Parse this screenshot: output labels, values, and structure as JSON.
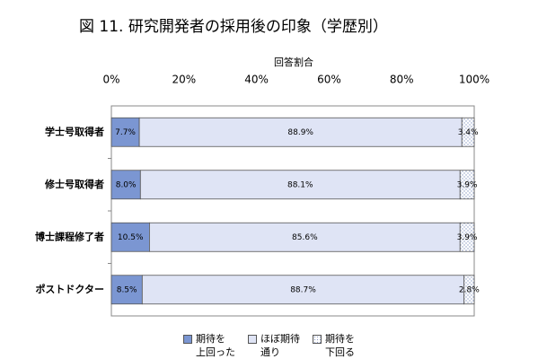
{
  "chart_data": {
    "type": "stacked-barh",
    "title": "図 11.  研究開発者の採用後の印象（学歴別）",
    "x_label": "回答割合",
    "categories": [
      "学士号取得者",
      "修士号取得者",
      "博士課程修了者",
      "ポストドクター"
    ],
    "series": [
      {
        "name": "期待を\n上回った",
        "color": "#7b96d2",
        "values": [
          7.7,
          8.0,
          10.5,
          8.5
        ],
        "value_labels": [
          "7.7%",
          "8.0%",
          "10.5%",
          "8.5%"
        ]
      },
      {
        "name": "ほぼ期待\n通り",
        "color": "#dfe4f5",
        "values": [
          88.9,
          88.1,
          85.6,
          88.7
        ],
        "value_labels": [
          "88.9%",
          "88.1%",
          "85.6%",
          "88.7%"
        ]
      },
      {
        "name": "期待を\n下回る",
        "color": "#ffffff",
        "pattern": "dotted",
        "values": [
          3.4,
          3.9,
          3.9,
          2.8
        ],
        "value_labels": [
          "3.4%",
          "3.9%",
          "3.9%",
          "2.8%"
        ]
      }
    ],
    "xlim": [
      0,
      100
    ],
    "xticks": [
      {
        "value": 0,
        "label": "0%"
      },
      {
        "value": 20,
        "label": "20%"
      },
      {
        "value": 40,
        "label": "40%"
      },
      {
        "value": 60,
        "label": "60%"
      },
      {
        "value": 80,
        "label": "80%"
      },
      {
        "value": 100,
        "label": "100%"
      }
    ],
    "grid": false,
    "legend": "bottom"
  }
}
